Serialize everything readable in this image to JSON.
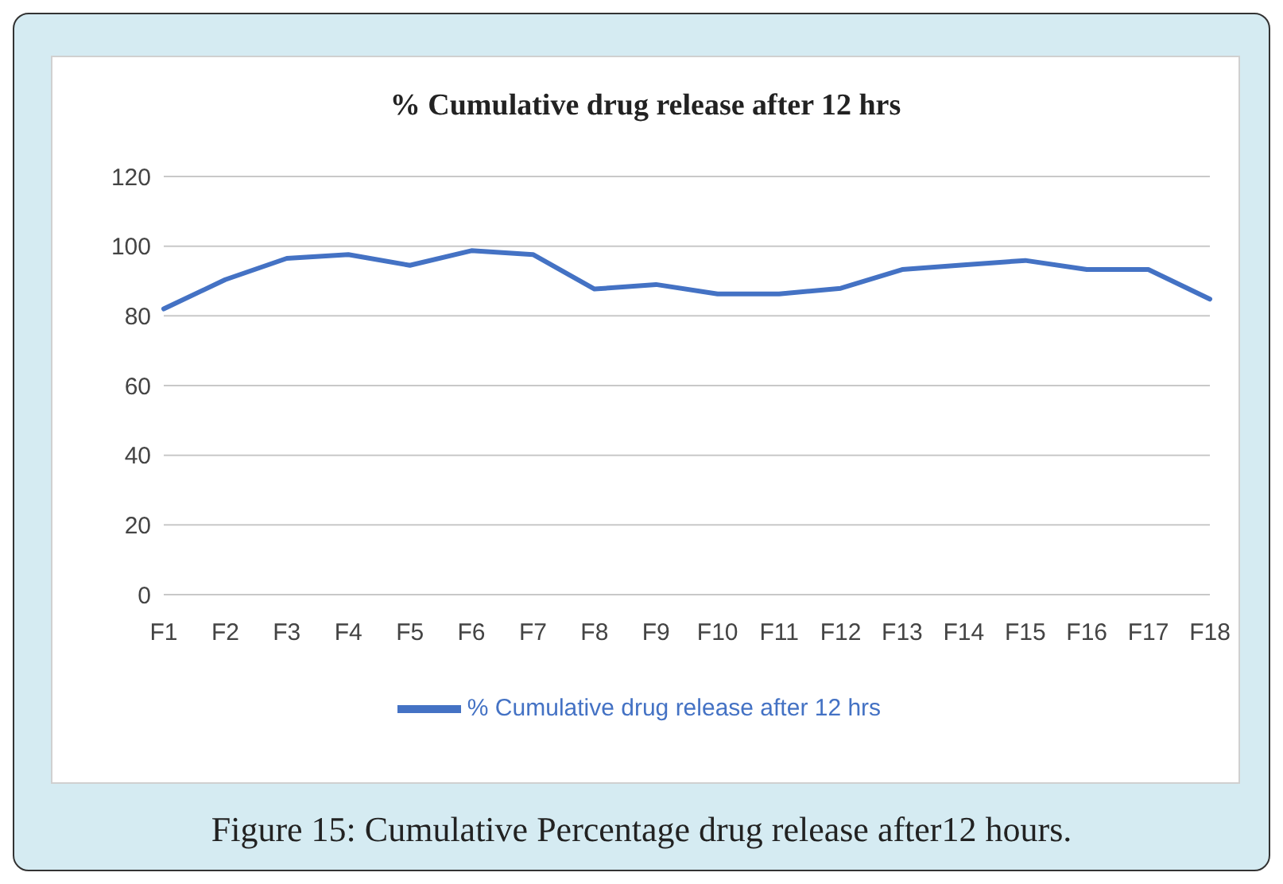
{
  "chart_data": {
    "type": "line",
    "title": "% Cumulative drug release after 12 hrs",
    "categories": [
      "F1",
      "F2",
      "F3",
      "F4",
      "F5",
      "F6",
      "F7",
      "F8",
      "F9",
      "F10",
      "F11",
      "F12",
      "F13",
      "F14",
      "F15",
      "F16",
      "F17",
      "F18"
    ],
    "series": [
      {
        "name": "% Cumulative drug release after 12 hrs",
        "color": "#4472c4",
        "values": [
          82,
          90.4,
          96.5,
          97.6,
          94.5,
          98.7,
          97.6,
          87.7,
          89,
          86.3,
          86.3,
          87.9,
          93.3,
          94.6,
          95.9,
          93.3,
          93.3,
          84.8
        ]
      }
    ],
    "ylim": [
      0,
      120
    ],
    "yticks": [
      0,
      20,
      40,
      60,
      80,
      100,
      120
    ],
    "grid": "y",
    "legend": "bottom",
    "marker": "none",
    "annotations": [
      "Figure 15: Cumulative Percentage drug release after12 hours."
    ]
  }
}
